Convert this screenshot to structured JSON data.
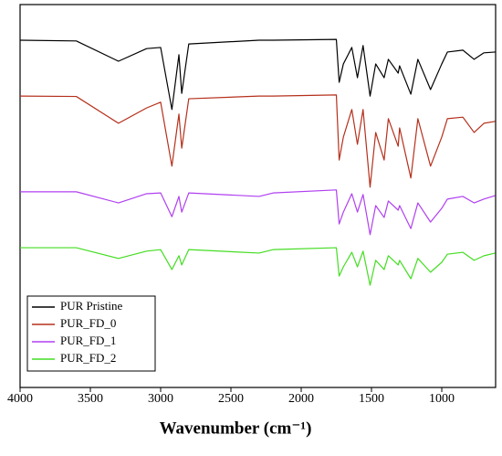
{
  "chart_data": {
    "type": "line",
    "xlabel": "Wavenumber (cm⁻¹)",
    "x": [
      4000,
      3600,
      3300,
      3100,
      3000,
      2920,
      2870,
      2850,
      2800,
      2300,
      2200,
      1750,
      1730,
      1700,
      1640,
      1600,
      1560,
      1510,
      1470,
      1410,
      1380,
      1310,
      1300,
      1220,
      1170,
      1080,
      1000,
      960,
      850,
      770,
      700,
      620
    ],
    "series": [
      {
        "name": "PUR Pristine",
        "color": "#000000",
        "values": [
          90.7,
          90.5,
          85.2,
          88.5,
          88.8,
          72.6,
          86.9,
          76.8,
          89.7,
          90.7,
          90.7,
          90.9,
          79.7,
          84.5,
          88.8,
          80.9,
          89.3,
          76.1,
          84.5,
          80.9,
          85.7,
          82.1,
          84.0,
          76.6,
          85.7,
          77.8,
          84.5,
          87.6,
          88.1,
          85.7,
          87.4,
          87.6
        ]
      },
      {
        "name": "PUR_FD_0",
        "color": "#b5301c",
        "values": [
          76.1,
          76.0,
          69.0,
          73.0,
          74.5,
          57.8,
          71.4,
          62.5,
          75.4,
          76.1,
          76.1,
          76.4,
          59.4,
          65.4,
          72.6,
          63.5,
          72.6,
          52.3,
          66.6,
          59.4,
          70.2,
          63.0,
          67.8,
          54.7,
          70.2,
          57.8,
          65.4,
          70.2,
          70.6,
          66.6,
          69.0,
          69.5
        ]
      },
      {
        "name": "PUR_FD_1",
        "color": "#b040f0",
        "values": [
          51.1,
          51.1,
          48.2,
          50.6,
          50.8,
          44.6,
          49.9,
          45.8,
          50.8,
          49.9,
          50.8,
          51.6,
          42.7,
          45.8,
          50.6,
          45.8,
          50.4,
          39.9,
          47.5,
          44.4,
          48.7,
          46.3,
          47.5,
          41.5,
          48.2,
          43.2,
          46.8,
          49.2,
          49.9,
          48.2,
          49.2,
          50.1
        ]
      },
      {
        "name": "PUR_FD_2",
        "color": "#44dd22",
        "values": [
          36.5,
          36.5,
          33.7,
          35.6,
          36.0,
          30.8,
          34.4,
          32.0,
          36.0,
          35.1,
          36.0,
          36.5,
          29.1,
          31.5,
          35.3,
          31.5,
          35.6,
          26.7,
          33.2,
          30.8,
          34.4,
          32.0,
          33.2,
          28.4,
          33.7,
          30.1,
          32.7,
          34.8,
          35.3,
          33.2,
          34.4,
          35.1
        ]
      }
    ],
    "xlim": [
      4000,
      617
    ],
    "xticks": [
      4000,
      3500,
      3000,
      2500,
      2000,
      1500,
      1000
    ],
    "ylim": [
      0,
      100
    ],
    "legend": "lower left"
  }
}
